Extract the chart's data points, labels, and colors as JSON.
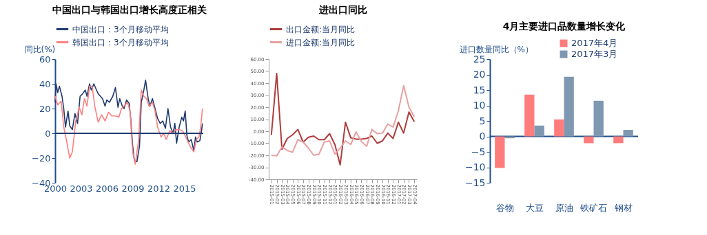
{
  "chart_data": [
    {
      "type": "line",
      "title": "中国出口与韩国出口增长高度正相关",
      "ylabel": "同比(%)",
      "legend": "top",
      "xlim": [
        2000,
        2017.2
      ],
      "xticks": [
        2000,
        2003,
        2006,
        2009,
        2012,
        2015
      ],
      "ylim": [
        -40,
        60
      ],
      "yticks": [
        -40,
        -20,
        0,
        20,
        40,
        60
      ],
      "ref_lines": [
        {
          "axis": "y",
          "value": 0,
          "color": "#1f3a6e"
        }
      ],
      "series": [
        {
          "name": "中国出口：3个月移动平均",
          "color": "#1f3a6e",
          "x": [
            2000.0,
            2000.1,
            2000.3,
            2000.5,
            2000.8,
            2001.0,
            2001.2,
            2001.5,
            2001.7,
            2002.0,
            2002.3,
            2002.6,
            2002.9,
            2003.2,
            2003.5,
            2003.7,
            2004.0,
            2004.2,
            2004.5,
            2004.8,
            2005.0,
            2005.5,
            2005.8,
            2006.0,
            2006.3,
            2006.7,
            2007.0,
            2007.3,
            2007.5,
            2007.8,
            2008.0,
            2008.3,
            2008.6,
            2008.8,
            2009.0,
            2009.2,
            2009.5,
            2009.8,
            2010.0,
            2010.3,
            2010.5,
            2010.8,
            2011.0,
            2011.3,
            2011.6,
            2011.9,
            2012.2,
            2012.5,
            2012.8,
            2013.1,
            2013.4,
            2013.7,
            2013.9,
            2014.1,
            2014.4,
            2014.7,
            2014.9,
            2015.1,
            2015.3,
            2015.5,
            2015.8,
            2016.1,
            2016.3,
            2016.5,
            2016.8,
            2017.0,
            2017.1
          ],
          "values": [
            25,
            40,
            33,
            38,
            30,
            20,
            5,
            18,
            6,
            3,
            16,
            8,
            30,
            32,
            35,
            30,
            40,
            35,
            40,
            35,
            32,
            28,
            22,
            27,
            25,
            30,
            37,
            21,
            28,
            22,
            20,
            27,
            24,
            10,
            -10,
            -22,
            -23,
            -10,
            25,
            35,
            43,
            28,
            22,
            28,
            20,
            12,
            8,
            10,
            4,
            20,
            5,
            0,
            8,
            -8,
            5,
            13,
            10,
            18,
            -2,
            -7,
            -5,
            -14,
            -3,
            -7,
            -6,
            2,
            8
          ]
        },
        {
          "name": "韩国出口：3个月移动平均",
          "color": "#ff7f7f",
          "x": [
            2000.0,
            2000.3,
            2000.7,
            2001.0,
            2001.3,
            2001.7,
            2002.0,
            2002.4,
            2002.8,
            2003.1,
            2003.4,
            2003.7,
            2004.0,
            2004.3,
            2004.6,
            2005.0,
            2005.4,
            2005.8,
            2006.2,
            2006.6,
            2007.0,
            2007.4,
            2007.7,
            2008.0,
            2008.4,
            2008.7,
            2009.0,
            2009.3,
            2009.7,
            2010.0,
            2010.3,
            2010.6,
            2010.9,
            2011.3,
            2011.6,
            2011.9,
            2012.3,
            2012.6,
            2012.9,
            2013.3,
            2013.7,
            2014.0,
            2014.4,
            2014.8,
            2015.1,
            2015.5,
            2015.8,
            2016.1,
            2016.4,
            2016.7,
            2016.9,
            2017.1
          ],
          "values": [
            30,
            23,
            26,
            5,
            -5,
            -20,
            -15,
            10,
            21,
            15,
            28,
            22,
            38,
            38,
            22,
            9,
            15,
            10,
            17,
            14,
            14,
            13,
            20,
            22,
            25,
            18,
            -15,
            -25,
            -5,
            35,
            30,
            28,
            22,
            25,
            18,
            5,
            -3,
            0,
            -5,
            2,
            0,
            3,
            3,
            2,
            -2,
            -8,
            -12,
            -15,
            -5,
            -3,
            5,
            20
          ]
        }
      ]
    },
    {
      "type": "line",
      "title": "进出口同比",
      "legend": "top",
      "categories": [
        "2015-01",
        "2015-02",
        "2015-03",
        "2015-04",
        "2015-05",
        "2015-06",
        "2015-07",
        "2015-08",
        "2015-09",
        "2015-10",
        "2015-11",
        "2015-12",
        "2016-01",
        "2016-02",
        "2016-03",
        "2016-04",
        "2016-05",
        "2016-06",
        "2016-07",
        "2016-08",
        "2016-09",
        "2016-10",
        "2016-11",
        "2016-12",
        "2017-01",
        "2017-02",
        "2017-03",
        "2017-04"
      ],
      "ylim": [
        -40,
        60
      ],
      "yticks": [
        {
          "value": -40,
          "label": "-40.00"
        },
        {
          "value": -30,
          "label": "-30.00"
        },
        {
          "value": -20,
          "label": "-20.00"
        },
        {
          "value": -10,
          "label": "-10.00"
        },
        {
          "value": 0,
          "label": "0.00"
        },
        {
          "value": 10,
          "label": "10.00"
        },
        {
          "value": 20,
          "label": "20.00"
        },
        {
          "value": 30,
          "label": "30.00"
        },
        {
          "value": 40,
          "label": "40.00"
        },
        {
          "value": 50,
          "label": "50.00"
        },
        {
          "value": 60,
          "label": "60.00"
        }
      ],
      "series": [
        {
          "name": "出口金额:当月同比",
          "color": "#b03a3a",
          "values": [
            -3,
            48,
            -15,
            -6,
            -3,
            1.5,
            -9,
            -5,
            -4,
            -7,
            -7,
            -2,
            -11,
            -28,
            7.5,
            -5.5,
            -6.5,
            -6.5,
            -6,
            -4,
            -10,
            -8,
            -1.5,
            -6,
            7.5,
            -1.5,
            16,
            8
          ]
        },
        {
          "name": "进口金额:当月同比",
          "color": "#e8a0a0",
          "values": [
            -20,
            -20.5,
            -13,
            -16,
            -17.5,
            -7,
            -9,
            -14,
            -20,
            -19,
            -9,
            -8,
            -19,
            -14,
            -8,
            -11,
            -0.5,
            -8.5,
            -12.5,
            1.5,
            -2,
            -1.5,
            6,
            3.5,
            17,
            38,
            20,
            12
          ]
        }
      ]
    },
    {
      "type": "bar",
      "title": "4月主要进口品数量增长变化",
      "ylabel": "进口数量同比（%）",
      "legend": "top right",
      "categories": [
        "谷物",
        "大豆",
        "原油",
        "铁矿石",
        "钢材"
      ],
      "ylim": [
        -15,
        25
      ],
      "yticks": [
        -15,
        -10,
        -5,
        0,
        5,
        10,
        15,
        20,
        25
      ],
      "ref_lines": [
        {
          "axis": "y",
          "value": 0,
          "color": "#1f4e8c"
        }
      ],
      "series": [
        {
          "name": "2017年4月",
          "color": "#ff7c7c",
          "values": [
            -10.2,
            13.5,
            5.5,
            -2.2,
            -2.2
          ]
        },
        {
          "name": "2017年3月",
          "color": "#7f98b2",
          "values": [
            -0.6,
            3.5,
            19.3,
            11.5,
            2.1
          ]
        }
      ]
    }
  ]
}
